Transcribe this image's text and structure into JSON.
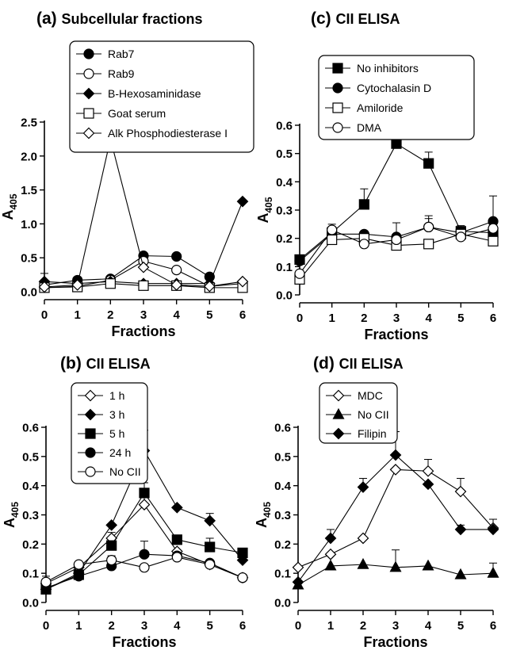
{
  "chart_data": [
    {
      "id": "a",
      "type": "line",
      "title_label": "(a)",
      "title": "Subcellular fractions",
      "xlabel": "Fractions",
      "ylabel_main": "A",
      "ylabel_sub": "405",
      "xlim": [
        0,
        6
      ],
      "ylim": [
        0,
        2.5
      ],
      "xticks": [
        0,
        1,
        2,
        3,
        4,
        5,
        6
      ],
      "yticks": [
        0.0,
        0.5,
        1.0,
        1.5,
        2.0,
        2.5
      ],
      "ytick_labels": [
        "0.0",
        "0.5",
        "1.0",
        "1.5",
        "2.0",
        "2.5"
      ],
      "legend": "top",
      "x": [
        0,
        1,
        2,
        3,
        4,
        5,
        6
      ],
      "series": [
        {
          "name": "Rab7",
          "marker": "circle-filled",
          "values": [
            0.1,
            0.17,
            0.19,
            0.53,
            0.52,
            0.22,
            null
          ],
          "errors": [
            0.17,
            0,
            0.02,
            0,
            0,
            0,
            0
          ]
        },
        {
          "name": "Rab9",
          "marker": "circle-open",
          "values": [
            0.06,
            0.08,
            0.17,
            0.45,
            0.32,
            0.08,
            0.12
          ],
          "errors": [
            0,
            0,
            0,
            0,
            0,
            0,
            0
          ]
        },
        {
          "name": "B-Hexosaminidase",
          "marker": "diamond-filled",
          "values": [
            0.15,
            0.12,
            0.15,
            0.12,
            0.12,
            0.12,
            1.33
          ],
          "errors": [
            0,
            0,
            0,
            0,
            0,
            0,
            0
          ]
        },
        {
          "name": "Goat serum",
          "marker": "square-open",
          "values": [
            0.06,
            0.07,
            0.12,
            0.09,
            0.09,
            0.06,
            0.06
          ],
          "errors": [
            0,
            0,
            0,
            0,
            0,
            0,
            0
          ]
        },
        {
          "name": "Alk Phosphodiesterase I",
          "marker": "diamond-open",
          "values": [
            0.07,
            0.1,
            2.25,
            0.36,
            0.1,
            0.08,
            0.15
          ],
          "errors": [
            0,
            0,
            0,
            0,
            0,
            0,
            0
          ]
        }
      ]
    },
    {
      "id": "c",
      "type": "line",
      "title_label": "(c)",
      "title": "CII ELISA",
      "xlabel": "Fractions",
      "ylabel_main": "A",
      "ylabel_sub": "405",
      "xlim": [
        0,
        6
      ],
      "ylim": [
        0,
        0.6
      ],
      "xticks": [
        0,
        1,
        2,
        3,
        4,
        5,
        6
      ],
      "yticks": [
        0.0,
        0.1,
        0.2,
        0.3,
        0.4,
        0.5,
        0.6
      ],
      "ytick_labels": [
        "0.0",
        "0.1",
        "0.2",
        "0.3",
        "0.4",
        "0.5",
        "0.6"
      ],
      "legend": "top-left",
      "x": [
        0,
        1,
        2,
        3,
        4,
        5,
        6
      ],
      "series": [
        {
          "name": "No inhibitors",
          "marker": "square-filled",
          "values": [
            0.125,
            0.22,
            0.32,
            0.535,
            0.465,
            0.225,
            0.22
          ],
          "errors": [
            0,
            0.02,
            0.055,
            0.03,
            0.04,
            0.02,
            0
          ]
        },
        {
          "name": "Cytochalasin D",
          "marker": "circle-filled",
          "values": [
            0.12,
            0.215,
            0.215,
            0.205,
            0.24,
            0.22,
            0.26
          ],
          "errors": [
            0,
            0,
            0,
            0,
            0.04,
            0,
            0.09
          ]
        },
        {
          "name": "Amiloride",
          "marker": "square-open",
          "values": [
            0.055,
            0.195,
            0.2,
            0.175,
            0.18,
            0.215,
            0.19
          ],
          "errors": [
            0,
            0,
            0.02,
            0,
            0,
            0,
            0
          ]
        },
        {
          "name": "DMA",
          "marker": "circle-open",
          "values": [
            0.075,
            0.23,
            0.18,
            0.195,
            0.24,
            0.205,
            0.235
          ],
          "errors": [
            0,
            0.02,
            0.01,
            0.06,
            0.03,
            0,
            0.03
          ]
        }
      ]
    },
    {
      "id": "b",
      "type": "line",
      "title_label": "(b)",
      "title": "CII ELISA",
      "xlabel": "Fractions",
      "ylabel_main": "A",
      "ylabel_sub": "405",
      "xlim": [
        0,
        6
      ],
      "ylim": [
        0,
        0.6
      ],
      "xticks": [
        0,
        1,
        2,
        3,
        4,
        5,
        6
      ],
      "yticks": [
        0.0,
        0.1,
        0.2,
        0.3,
        0.4,
        0.5,
        0.6
      ],
      "ytick_labels": [
        "0.0",
        "0.1",
        "0.2",
        "0.3",
        "0.4",
        "0.5",
        "0.6"
      ],
      "legend": "top-left",
      "x": [
        0,
        1,
        2,
        3,
        4,
        5,
        6
      ],
      "series": [
        {
          "name": "1 h",
          "marker": "diamond-open",
          "values": [
            0.065,
            0.12,
            0.22,
            0.335,
            0.175,
            0.13,
            0.085
          ],
          "errors": [
            0,
            0,
            0.02,
            0.03,
            0,
            0,
            0
          ]
        },
        {
          "name": "3 h",
          "marker": "diamond-filled",
          "values": [
            0.045,
            0.1,
            0.265,
            0.52,
            0.325,
            0.28,
            0.145
          ],
          "errors": [
            0,
            0,
            0,
            0.07,
            0,
            0.025,
            0.02
          ]
        },
        {
          "name": "5 h",
          "marker": "square-filled",
          "values": [
            0.045,
            0.095,
            0.195,
            0.375,
            0.215,
            0.19,
            0.17
          ],
          "errors": [
            0,
            0,
            0,
            0.035,
            0,
            0.03,
            0.015
          ]
        },
        {
          "name": "24 h",
          "marker": "circle-filled",
          "values": [
            0.05,
            0.09,
            0.125,
            0.165,
            0.16,
            0.135,
            0.085
          ],
          "errors": [
            0,
            0,
            0,
            0.045,
            0,
            0,
            0
          ]
        },
        {
          "name": "No CII",
          "marker": "circle-open",
          "values": [
            0.07,
            0.13,
            0.145,
            0.12,
            0.155,
            0.13,
            0.085
          ],
          "errors": [
            0.02,
            0,
            0.015,
            0,
            0,
            0,
            0
          ]
        }
      ]
    },
    {
      "id": "d",
      "type": "line",
      "title_label": "(d)",
      "title": "CII ELISA",
      "xlabel": "Fractions",
      "ylabel_main": "A",
      "ylabel_sub": "405",
      "xlim": [
        0,
        6
      ],
      "ylim": [
        0,
        0.6
      ],
      "xticks": [
        0,
        1,
        2,
        3,
        4,
        5,
        6
      ],
      "yticks": [
        0.0,
        0.1,
        0.2,
        0.3,
        0.4,
        0.5,
        0.6
      ],
      "ytick_labels": [
        "0.0",
        "0.1",
        "0.2",
        "0.3",
        "0.4",
        "0.5",
        "0.6"
      ],
      "legend": "top-left",
      "x": [
        0,
        1,
        2,
        3,
        4,
        5,
        6
      ],
      "series": [
        {
          "name": "MDC",
          "marker": "diamond-open",
          "values": [
            0.12,
            0.165,
            0.22,
            0.455,
            0.45,
            0.38,
            0.255
          ],
          "errors": [
            0,
            0,
            0,
            0,
            0.04,
            0.045,
            0.03
          ]
        },
        {
          "name": "No CII",
          "marker": "triangle-filled",
          "values": [
            0.06,
            0.125,
            0.13,
            0.12,
            0.125,
            0.095,
            0.1
          ],
          "errors": [
            0,
            0,
            0,
            0.06,
            0,
            0,
            0.035
          ]
        },
        {
          "name": "Filipin",
          "marker": "diamond-filled",
          "values": [
            0.07,
            0.22,
            0.395,
            0.505,
            0.405,
            0.25,
            0.25
          ],
          "errors": [
            0,
            0.03,
            0.03,
            0.08,
            0,
            0.015,
            0
          ]
        }
      ]
    }
  ]
}
